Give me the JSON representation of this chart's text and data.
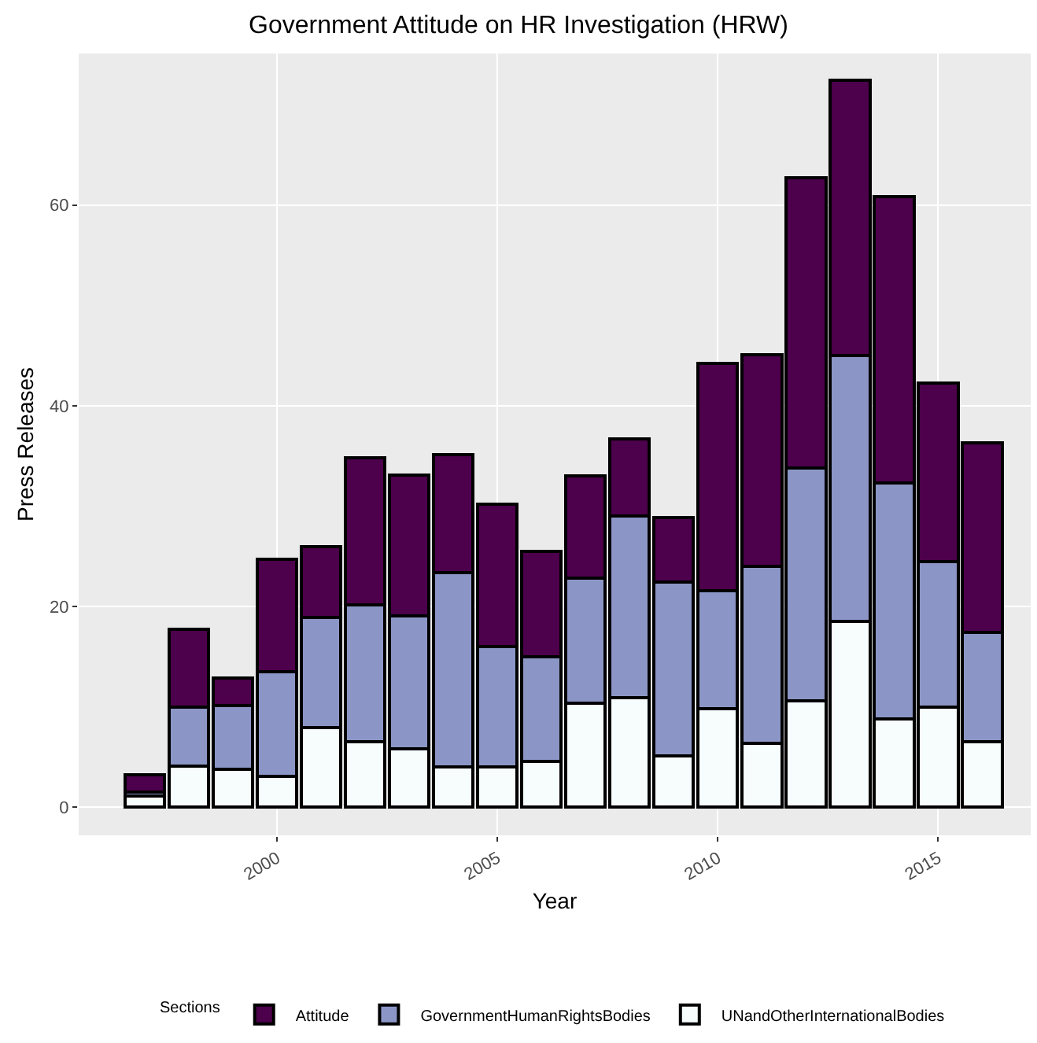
{
  "chart_data": {
    "type": "bar",
    "title": "Government Attitude on HR Investigation (HRW)",
    "xlabel": "Year",
    "ylabel": "Press Releases",
    "legend_title": "Sections",
    "stacked": true,
    "x": [
      1997,
      1998,
      1999,
      2000,
      2001,
      2002,
      2003,
      2004,
      2005,
      2006,
      2007,
      2008,
      2009,
      2010,
      2011,
      2012,
      2013,
      2014,
      2015,
      2016
    ],
    "series": [
      {
        "name": "UNandOtherInternationalBodies",
        "color": "#f7fcfd",
        "values": [
          1.1,
          4.1,
          3.8,
          3.1,
          7.9,
          6.5,
          5.8,
          4.0,
          4.0,
          4.6,
          10.4,
          10.9,
          5.1,
          9.8,
          6.4,
          10.6,
          18.5,
          8.8,
          10.0,
          6.5
        ]
      },
      {
        "name": "GovernmentHumanRightsBodies",
        "color": "#8c96c6",
        "values": [
          0.4,
          5.9,
          6.3,
          10.4,
          11.0,
          13.7,
          13.3,
          19.4,
          12.0,
          10.4,
          12.4,
          18.1,
          17.3,
          11.8,
          17.6,
          23.2,
          26.5,
          23.5,
          14.5,
          10.9
        ]
      },
      {
        "name": "Attitude",
        "color": "#4d004b",
        "values": [
          1.7,
          7.7,
          2.8,
          11.2,
          7.1,
          14.6,
          14.0,
          11.7,
          14.2,
          10.5,
          10.2,
          7.7,
          6.5,
          22.6,
          21.1,
          28.9,
          27.4,
          28.5,
          17.8,
          18.9
        ]
      }
    ],
    "xlim": [
      1995.5,
      2017.1
    ],
    "xticks": [
      2000,
      2005,
      2010,
      2015
    ],
    "ylim": [
      -2.8,
      75.1
    ],
    "yticks": [
      0,
      20,
      40,
      60
    ],
    "grid": true,
    "legend": "bottom"
  }
}
